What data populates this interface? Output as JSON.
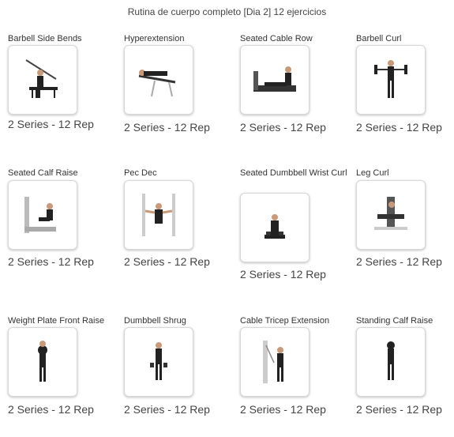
{
  "header": {
    "title": "Rutina de cuerpo completo [Dia 2] 12 ejercicios"
  },
  "exercises": [
    {
      "name": "Barbell Side Bends",
      "meta": "2 Series - 12 Rep",
      "icon": "barbell-side-bends-icon"
    },
    {
      "name": "Hyperextension",
      "meta": "2 Series - 12 Rep",
      "icon": "hyperextension-icon"
    },
    {
      "name": "Seated Cable Row",
      "meta": "2 Series - 12 Rep",
      "icon": "seated-cable-row-icon"
    },
    {
      "name": "Barbell Curl",
      "meta": "2 Series - 12 Rep",
      "icon": "barbell-curl-icon"
    },
    {
      "name": "Seated Calf Raise",
      "meta": "2 Series - 12 Rep",
      "icon": "seated-calf-raise-icon"
    },
    {
      "name": "Pec Dec",
      "meta": "2 Series - 12 Rep",
      "icon": "pec-dec-icon"
    },
    {
      "name": "Seated Dumbbell Wrist Curl",
      "meta": "2 Series - 12 Rep",
      "icon": "seated-dumbbell-wrist-curl-icon"
    },
    {
      "name": "Leg Curl",
      "meta": "2 Series - 12 Rep",
      "icon": "leg-curl-icon"
    },
    {
      "name": "Weight Plate Front Raise",
      "meta": "2 Series - 12 Rep",
      "icon": "weight-plate-front-raise-icon"
    },
    {
      "name": "Dumbbell Shrug",
      "meta": "2 Series - 12 Rep",
      "icon": "dumbbell-shrug-icon"
    },
    {
      "name": "Cable Tricep Extension",
      "meta": "2 Series - 12 Rep",
      "icon": "cable-tricep-extension-icon"
    },
    {
      "name": "Standing Calf Raise",
      "meta": "2 Series - 12 Rep",
      "icon": "standing-calf-raise-icon"
    }
  ]
}
